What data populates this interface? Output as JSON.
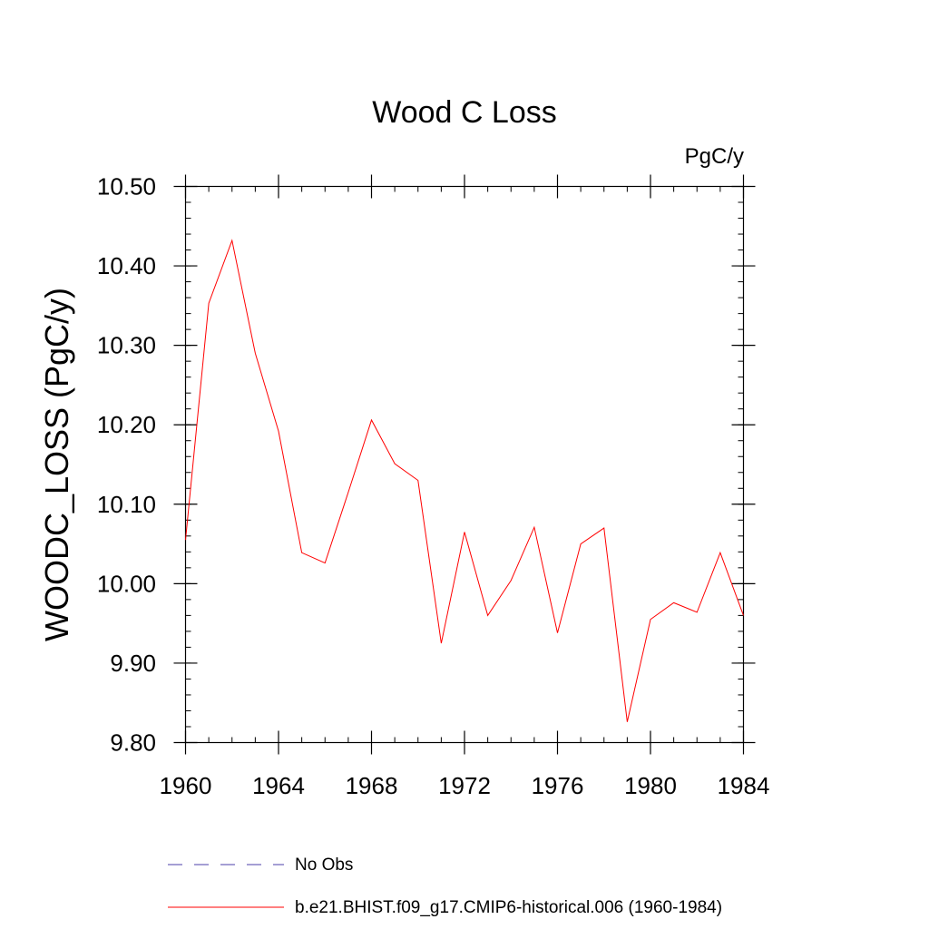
{
  "chart_data": {
    "type": "line",
    "title": "Wood C Loss",
    "units_label": "PgC/y",
    "xlabel": "",
    "ylabel": "WOODC_LOSS  (PgC/y)",
    "xlim": [
      1960,
      1984
    ],
    "ylim": [
      9.8,
      10.5
    ],
    "x_ticks": [
      1960,
      1964,
      1968,
      1972,
      1976,
      1980,
      1984
    ],
    "x_tick_labels": [
      "1960",
      "1964",
      "1968",
      "1972",
      "1976",
      "1980",
      "1984"
    ],
    "y_ticks": [
      9.8,
      9.9,
      10.0,
      10.1,
      10.2,
      10.3,
      10.4,
      10.5
    ],
    "y_tick_labels": [
      "9.80",
      "9.90",
      "10.00",
      "10.10",
      "10.20",
      "10.30",
      "10.40",
      "10.50"
    ],
    "series": [
      {
        "name": "b.e21.BHIST.f09_g17.CMIP6-historical.006 (1960-1984)",
        "color": "#ff0000",
        "style": "solid",
        "x": [
          1960,
          1961,
          1962,
          1963,
          1964,
          1965,
          1966,
          1967,
          1968,
          1969,
          1970,
          1971,
          1972,
          1973,
          1974,
          1975,
          1976,
          1977,
          1978,
          1979,
          1980,
          1981,
          1982,
          1983,
          1984
        ],
        "values": [
          10.055,
          10.353,
          10.432,
          10.29,
          10.192,
          10.039,
          10.026,
          10.115,
          10.206,
          10.151,
          10.13,
          9.925,
          10.065,
          9.96,
          10.004,
          10.071,
          9.938,
          10.05,
          10.07,
          9.826,
          9.955,
          9.976,
          9.964,
          10.039,
          9.96
        ]
      }
    ],
    "legend": [
      {
        "label": "No Obs",
        "color": "#4b3fa8",
        "style": "dashed"
      },
      {
        "label": "b.e21.BHIST.f09_g17.CMIP6-historical.006 (1960-1984)",
        "color": "#ff0000",
        "style": "solid"
      }
    ]
  }
}
